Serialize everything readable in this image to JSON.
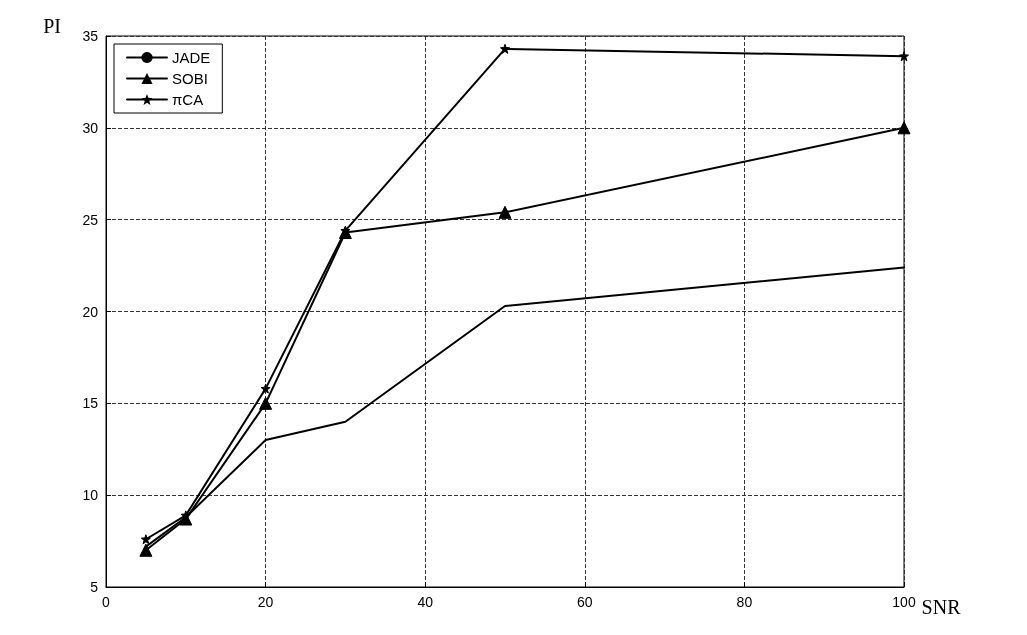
{
  "chart_data": {
    "type": "line",
    "xlabel": "SNR",
    "ylabel": "PI",
    "x": [
      5,
      10,
      20,
      30,
      50,
      100
    ],
    "series": [
      {
        "name": "JADE",
        "color": "#000000",
        "marker": "none",
        "values": [
          7.2,
          8.8,
          13.0,
          14.0,
          20.3,
          22.4
        ]
      },
      {
        "name": "SOBI",
        "color": "#000000",
        "marker": "triangle",
        "values": [
          7.0,
          8.7,
          15.0,
          24.3,
          25.4,
          30.0
        ]
      },
      {
        "name": "πCA",
        "color": "#000000",
        "marker": "star",
        "values": [
          7.6,
          8.9,
          15.8,
          24.4,
          34.3,
          33.9
        ]
      }
    ],
    "xlim": [
      0,
      100
    ],
    "xticks": [
      0,
      20,
      40,
      60,
      80,
      100
    ],
    "ylim": [
      5,
      35
    ],
    "yticks": [
      5,
      10,
      15,
      20,
      25,
      30,
      35
    ],
    "grid": true,
    "legend": "top left",
    "line_style": "solid"
  }
}
